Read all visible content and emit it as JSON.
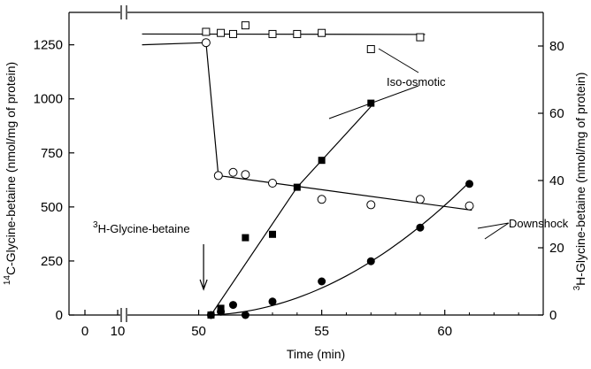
{
  "chart_data": {
    "type": "scatter",
    "xlabel": "Time (min)",
    "ylabel_left": "C-Glycine-betaine (nmol/mg of protein)",
    "ylabel_left_sup": "14",
    "ylabel_right": "H-Glycine-betaine (nmol/mg of protein)",
    "ylabel_right_sup": "3",
    "x_break": {
      "before": [
        0,
        10
      ],
      "after_range": [
        47.5,
        64
      ]
    },
    "x_ticks": [
      {
        "value": 0,
        "label": "0"
      },
      {
        "value": 10,
        "label": "10"
      },
      {
        "value": 50,
        "label": "50"
      },
      {
        "value": 55,
        "label": "55"
      },
      {
        "value": 60,
        "label": "60"
      }
    ],
    "ylim_left": [
      0,
      1400
    ],
    "ylim_right": [
      0,
      90
    ],
    "y_ticks_left": [
      "0",
      "250",
      "500",
      "750",
      "1000",
      "1250"
    ],
    "y_ticks_right": [
      "0",
      "20",
      "40",
      "60",
      "80"
    ],
    "series": [
      {
        "name": "Iso-osmotic",
        "axis": "left",
        "marker": "open-square",
        "points": [
          [
            50.3,
            1310
          ],
          [
            50.9,
            1305
          ],
          [
            51.4,
            1300
          ],
          [
            51.9,
            1340
          ],
          [
            53.0,
            1300
          ],
          [
            54.0,
            1300
          ],
          [
            55.0,
            1305
          ],
          [
            57.0,
            1230
          ],
          [
            59.0,
            1285
          ]
        ]
      },
      {
        "name": "Downshock",
        "axis": "left",
        "marker": "open-circle",
        "points": [
          [
            50.3,
            1260
          ],
          [
            50.8,
            645
          ],
          [
            51.4,
            660
          ],
          [
            51.9,
            650
          ],
          [
            53.0,
            610
          ],
          [
            55.0,
            535
          ],
          [
            57.0,
            510
          ],
          [
            59.0,
            535
          ],
          [
            61.0,
            505
          ]
        ]
      },
      {
        "axis": "right",
        "marker": "filled-square",
        "points": [
          [
            50.5,
            0
          ],
          [
            50.9,
            2
          ],
          [
            51.9,
            23
          ],
          [
            53.0,
            24
          ],
          [
            54.0,
            38
          ],
          [
            55.0,
            46
          ],
          [
            57.0,
            63
          ]
        ]
      },
      {
        "axis": "right",
        "marker": "filled-circle",
        "points": [
          [
            50.5,
            0
          ],
          [
            50.9,
            1
          ],
          [
            51.4,
            3
          ],
          [
            51.9,
            0
          ],
          [
            53.0,
            4
          ],
          [
            55.0,
            10
          ],
          [
            57.0,
            16
          ],
          [
            59.0,
            26
          ],
          [
            61.0,
            39
          ]
        ]
      }
    ],
    "annotations": [
      {
        "text": "Iso-osmotic",
        "points_to": "open-square"
      },
      {
        "text": "Downshock",
        "points_to": "open-circle"
      },
      {
        "text": "H-Glycine-betaine",
        "sup": "3",
        "arrow_at_x": 50.2
      }
    ]
  }
}
